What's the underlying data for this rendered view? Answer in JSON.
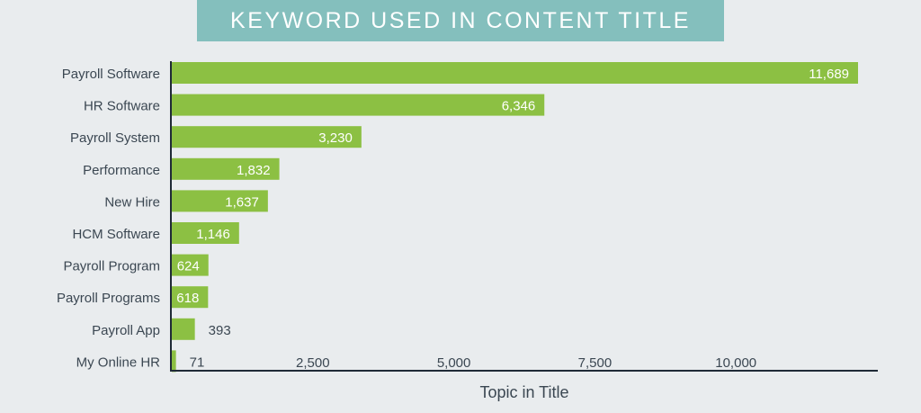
{
  "chart_data": {
    "type": "bar",
    "orientation": "horizontal",
    "title": "KEYWORD USED IN CONTENT TITLE",
    "xlabel": "Topic in Title",
    "ylabel": "",
    "categories": [
      "Payroll Software",
      "HR Software",
      "Payroll System",
      "Performance",
      "New Hire",
      "HCM Software",
      "Payroll Program",
      "Payroll Programs",
      "Payroll App",
      "My Online HR"
    ],
    "values": [
      11689,
      6346,
      3230,
      1832,
      1637,
      1146,
      624,
      618,
      393,
      71
    ],
    "value_labels": [
      "11,689",
      "6,346",
      "3,230",
      "1,832",
      "1,637",
      "1,146",
      "624",
      "618",
      "393",
      "71"
    ],
    "xticks": [
      2500,
      5000,
      7500,
      10000
    ],
    "xtick_labels": [
      "2,500",
      "5,000",
      "7,500",
      "10,000"
    ],
    "xlim": [
      0,
      12500
    ],
    "grid": false,
    "legend": "none",
    "colors": {
      "bar": "#8cc043",
      "banner": "#84bfbd",
      "text": "#3b4752",
      "axis": "#1f2a36",
      "label_inside": "#ffffff",
      "background": "#e9ecee"
    }
  }
}
